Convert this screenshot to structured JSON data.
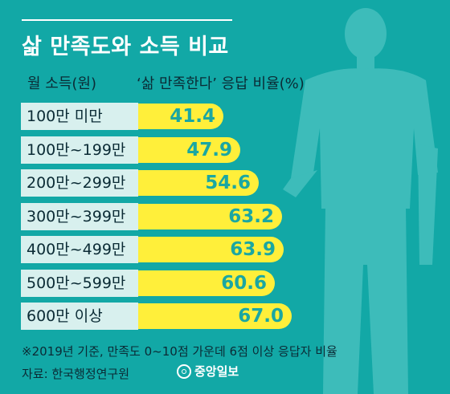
{
  "title": "삶 만족도와 소득 비교",
  "header": {
    "left": "월 소득(원)",
    "right": "‘삶 만족한다’ 응답 비율(%)"
  },
  "chart_data": {
    "type": "bar",
    "orientation": "horizontal",
    "title": "삶 만족도와 소득 비교",
    "xlabel": "‘삶 만족한다’ 응답 비율(%)",
    "ylabel": "월 소득(원)",
    "xlim": [
      0,
      100
    ],
    "categories": [
      "100만 미만",
      "100만~199만",
      "200만~299만",
      "300만~399만",
      "400만~499만",
      "500만~599만",
      "600만 이상"
    ],
    "values": [
      41.4,
      47.9,
      54.6,
      63.2,
      63.9,
      60.6,
      67.0
    ],
    "value_labels": [
      "41.4",
      "47.9",
      "54.6",
      "63.2",
      "63.9",
      "60.6",
      "67.0"
    ],
    "colors": {
      "bar": "#ffef3a",
      "value_text": "#1aa7a2",
      "category_bg": "#d8f0ee",
      "background": "#12a8a6"
    }
  },
  "footnote": "※2019년 기준, 만족도 0~10점 가운데 6점 이상 응답자 비율",
  "source": "자료: 한국행정연구원",
  "brand": "중앙일보"
}
